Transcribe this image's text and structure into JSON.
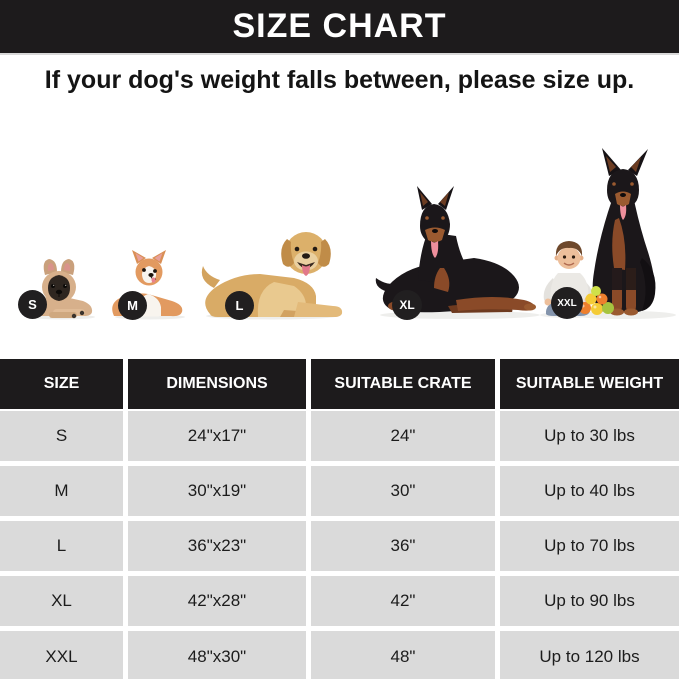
{
  "header": {
    "title": "SIZE CHART"
  },
  "subtitle": "If your dog's weight falls between, please size up.",
  "size_guide": {
    "items": [
      {
        "size": "S",
        "breed": "french-bulldog"
      },
      {
        "size": "M",
        "breed": "corgi"
      },
      {
        "size": "L",
        "breed": "golden-retriever"
      },
      {
        "size": "XL",
        "breed": "doberman-lying"
      },
      {
        "size": "XXL",
        "breed": "doberman-sitting-with-child-and-balls"
      }
    ]
  },
  "chart_data": {
    "type": "table",
    "title": "SIZE CHART",
    "columns": [
      "SIZE",
      "DIMENSIONS",
      "SUITABLE CRATE",
      "SUITABLE WEIGHT"
    ],
    "rows": [
      [
        "S",
        "24\"x17\"",
        "24\"",
        "Up to 30 lbs"
      ],
      [
        "M",
        "30\"x19\"",
        "30\"",
        "Up to 40 lbs"
      ],
      [
        "L",
        "36\"x23\"",
        "36\"",
        "Up to 70 lbs"
      ],
      [
        "XL",
        "42\"x28\"",
        "42\"",
        "Up to 90 lbs"
      ],
      [
        "XXL",
        "48\"x30\"",
        "48\"",
        "Up to 120 lbs"
      ]
    ]
  },
  "colors": {
    "header_bg": "#1d1b1c",
    "header_text": "#ffffff",
    "row_bg": "#dadada",
    "badge_bg": "#211f20",
    "page_bg": "#ffffff",
    "text": "#141414"
  }
}
